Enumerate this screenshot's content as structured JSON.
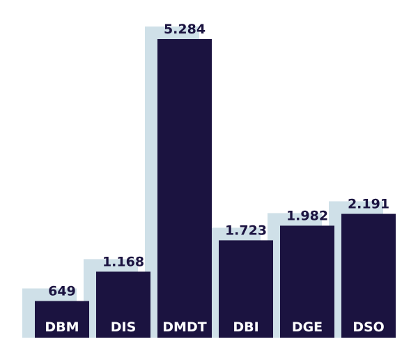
{
  "chart_data": {
    "type": "bar",
    "categories": [
      "DBM",
      "DIS",
      "DMDT",
      "DBI",
      "DGE",
      "DSO"
    ],
    "value_labels": [
      "649",
      "1.168",
      "5.284",
      "1.723",
      "1.982",
      "2.191"
    ],
    "values": [
      649,
      1168,
      5284,
      1723,
      1982,
      2191
    ],
    "title": "",
    "xlabel": "",
    "ylabel": "",
    "ylim": [
      0,
      5284
    ],
    "grid": false,
    "legend": "none",
    "colors": {
      "bar": "#1b1340",
      "shadow": "#cfe0e8",
      "value_text": "#1b1340",
      "category_text": "#ffffff"
    }
  }
}
